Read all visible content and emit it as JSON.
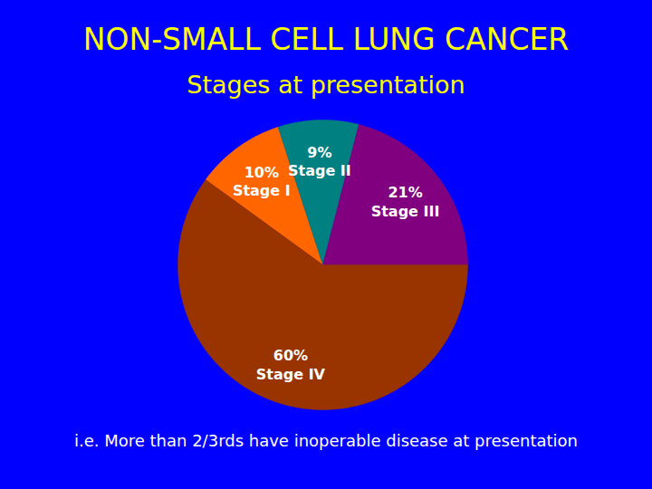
{
  "chart_data": {
    "type": "pie",
    "title": "NON-SMALL CELL LUNG CANCER",
    "subtitle": "Stages at presentation",
    "categories": [
      "Stage I",
      "Stage II",
      "Stage III",
      "Stage IV"
    ],
    "values": [
      10,
      9,
      21,
      60
    ],
    "value_labels": [
      "10%",
      "9%",
      "21%",
      "60%"
    ],
    "colors": [
      "#ff6600",
      "#008080",
      "#800080",
      "#993300"
    ],
    "data_labels": true,
    "annotations": [
      "i.e. More than 2/3rds have inoperable disease at presentation"
    ]
  }
}
